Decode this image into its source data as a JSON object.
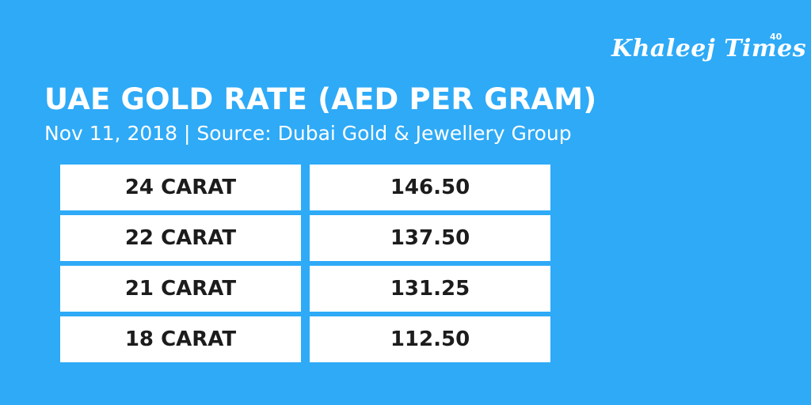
{
  "brand": {
    "name": "Khaleej Times",
    "badge": "40"
  },
  "header": {
    "title": "UAE GOLD RATE (AED PER GRAM)",
    "subtitle": "Nov 11, 2018 | Source: Dubai Gold & Jewellery Group"
  },
  "rates": [
    {
      "carat": "24 CARAT",
      "price": "146.50"
    },
    {
      "carat": "22 CARAT",
      "price": "137.50"
    },
    {
      "carat": "21 CARAT",
      "price": "131.25"
    },
    {
      "carat": "18 CARAT",
      "price": "112.50"
    }
  ],
  "colors": {
    "background": "#2eaaf7",
    "cell": "#ffffff",
    "text": "#1c1c1c"
  }
}
